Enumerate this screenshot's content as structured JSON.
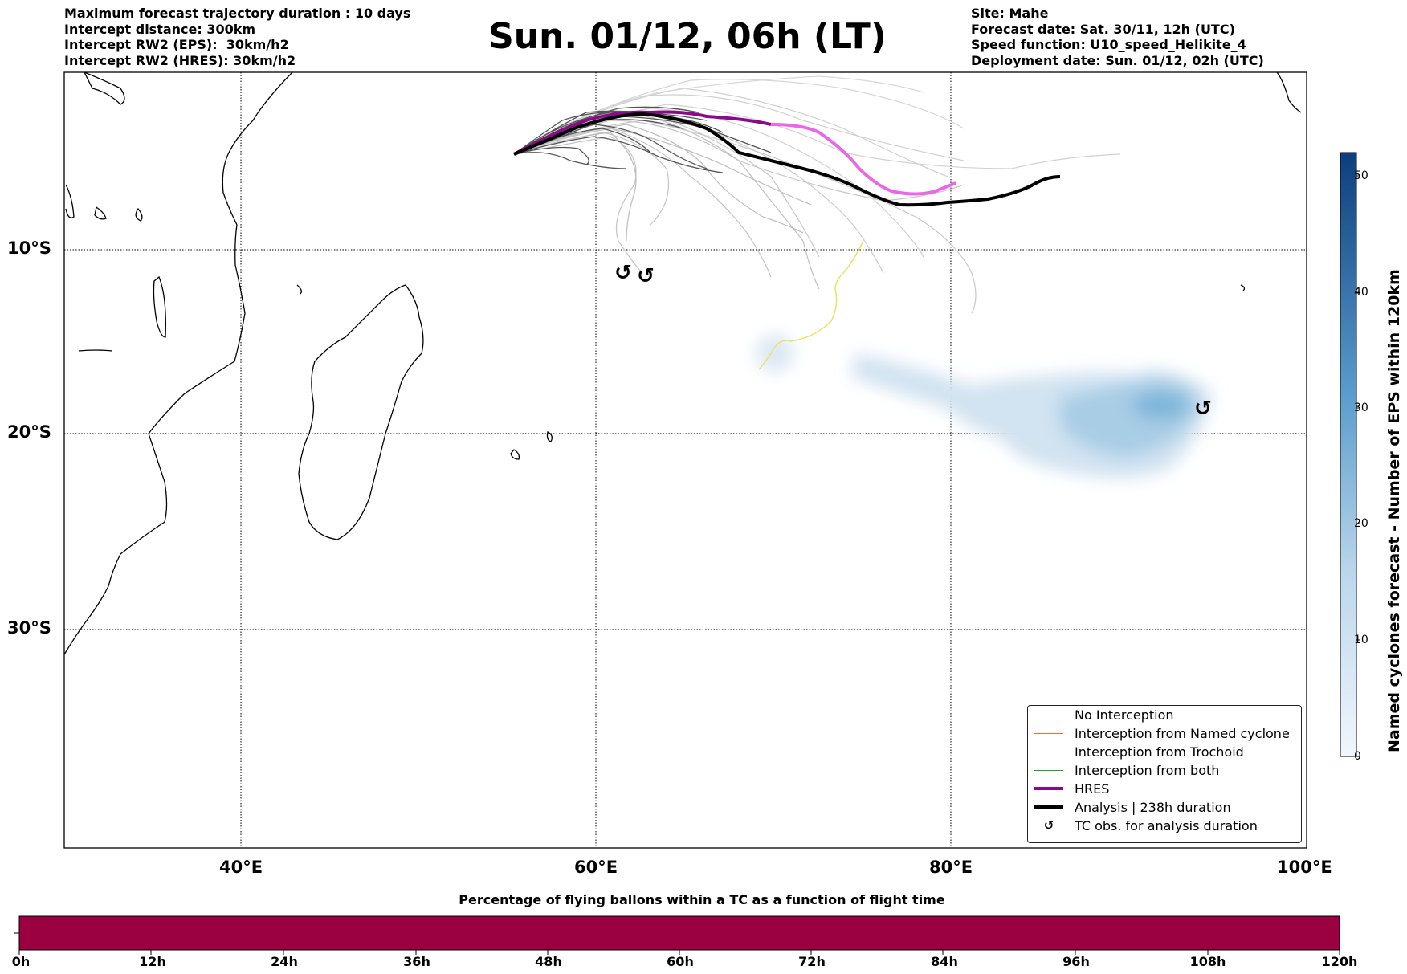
{
  "header": {
    "left": [
      "Maximum forecast trajectory duration : 10 days",
      "Intercept distance: 300km",
      "Intercept RW2 (EPS):  30km/h2",
      "Intercept RW2 (HRES): 30km/h2"
    ],
    "title": "Sun. 01/12, 06h (LT)",
    "right": [
      "Site: Mahe",
      "Forecast date: Sat. 30/11, 12h (UTC)",
      "Speed function: U10_speed_Helikite_4",
      "Deployment date: Sun. 01/12, 02h (UTC)"
    ]
  },
  "map": {
    "lon_ticks": [
      "40°E",
      "60°E",
      "80°E",
      "100°E"
    ],
    "lat_ticks": [
      "10°S",
      "20°S",
      "30°S"
    ],
    "extent": {
      "lon": [
        30,
        100
      ],
      "lat": [
        -42,
        0
      ]
    },
    "tc_obs_symbol": "↺"
  },
  "legend": [
    {
      "label": "No Interception",
      "color": "#6e6e6e"
    },
    {
      "label": "Interception from Named cyclone",
      "color": "#ff6a2a"
    },
    {
      "label": "Interception from Trochoid",
      "color": "#8a8a1e"
    },
    {
      "label": "Interception from both",
      "color": "#2a9a2a"
    },
    {
      "label": "HRES",
      "color": "#8b0a8b"
    },
    {
      "label": "Analysis | 238h duration",
      "color": "#000000"
    },
    {
      "label": "TC obs. for analysis duration",
      "icon": "tc-symbol-icon"
    }
  ],
  "colorbar": {
    "label": "Named cyclones forecast - Number of EPS within 120km",
    "ticks": [
      "0",
      "10",
      "20",
      "30",
      "40",
      "50"
    ],
    "range": [
      0,
      52
    ]
  },
  "timebar": {
    "title": "Percentage of flying ballons within a TC as a function of flight time",
    "ticks": [
      "0h",
      "12h",
      "24h",
      "36h",
      "48h",
      "60h",
      "72h",
      "84h",
      "96h",
      "108h",
      "120h"
    ],
    "color": "#9b0040"
  }
}
